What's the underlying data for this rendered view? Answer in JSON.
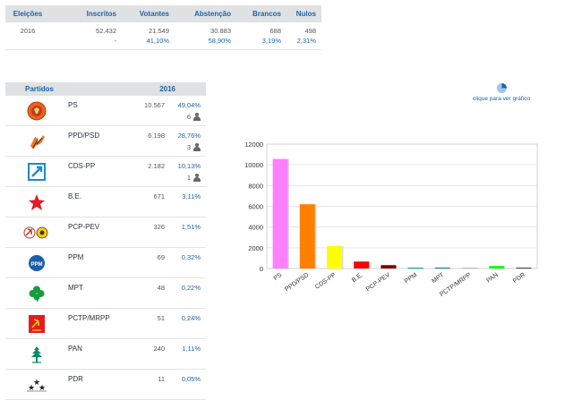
{
  "summary": {
    "headers": [
      "Eleições",
      "Inscritos",
      "Votantes",
      "Abstenção",
      "Brancos",
      "Nulos"
    ],
    "row": [
      "2016",
      "52.432",
      "21.549",
      "30.883",
      "688",
      "498"
    ],
    "pct_row": [
      "",
      "-",
      "41,10%",
      "58,90%",
      "3,19%",
      "2,31%"
    ]
  },
  "parties_table": {
    "header_name": "Partidos",
    "header_year": "2016",
    "rows": [
      {
        "name": "PS",
        "votes": "10.567",
        "pct": "49,04%",
        "seats": "6",
        "logo": "ps-logo-icon"
      },
      {
        "name": "PPD/PSD",
        "votes": "6.198",
        "pct": "28,76%",
        "seats": "3",
        "logo": "psd-logo-icon"
      },
      {
        "name": "CDS-PP",
        "votes": "2.182",
        "pct": "10,13%",
        "seats": "1",
        "logo": "cds-logo-icon"
      },
      {
        "name": "B.E.",
        "votes": "671",
        "pct": "3,11%",
        "seats": "",
        "logo": "be-star-icon"
      },
      {
        "name": "PCP-PEV",
        "votes": "326",
        "pct": "1,51%",
        "seats": "",
        "logo": "cdu-logo-icon"
      },
      {
        "name": "PPM",
        "votes": "69",
        "pct": "0,32%",
        "seats": "",
        "logo": "ppm-logo-icon"
      },
      {
        "name": "MPT",
        "votes": "48",
        "pct": "0,22%",
        "seats": "",
        "logo": "mpt-clover-icon"
      },
      {
        "name": "PCTP/MRPP",
        "votes": "51",
        "pct": "0,24%",
        "seats": "",
        "logo": "pctp-logo-icon"
      },
      {
        "name": "PAN",
        "votes": "240",
        "pct": "1,11%",
        "seats": "",
        "logo": "pan-tree-icon"
      },
      {
        "name": "PDR",
        "votes": "11",
        "pct": "0,05%",
        "seats": "",
        "logo": "pdr-stars-icon"
      }
    ]
  },
  "chart_link": {
    "label": "clique para ver gráfico",
    "icon": "pie-chart-icon"
  },
  "colors": {
    "accent": "#1e64a6",
    "header_bg": "#dfe1e3"
  },
  "chart_data": {
    "type": "bar",
    "categories": [
      "PS",
      "PPD/PSD",
      "CDS-PP",
      "B.E.",
      "PCP-PEV",
      "PPM",
      "MPT",
      "PCTP/MRPP",
      "PAN",
      "PDR"
    ],
    "values": [
      10567,
      6198,
      2182,
      671,
      326,
      69,
      48,
      51,
      240,
      11
    ],
    "colors": [
      "#ff80ff",
      "#ff8000",
      "#ffff00",
      "#ff0000",
      "#800000",
      "#00aa88",
      "#008080",
      "#c0c0c0",
      "#00ff00",
      "#444444"
    ],
    "ylim": [
      0,
      12000
    ],
    "yticks": [
      0,
      2000,
      4000,
      6000,
      8000,
      10000,
      12000
    ],
    "grid": true,
    "title": "",
    "xlabel": "",
    "ylabel": ""
  }
}
